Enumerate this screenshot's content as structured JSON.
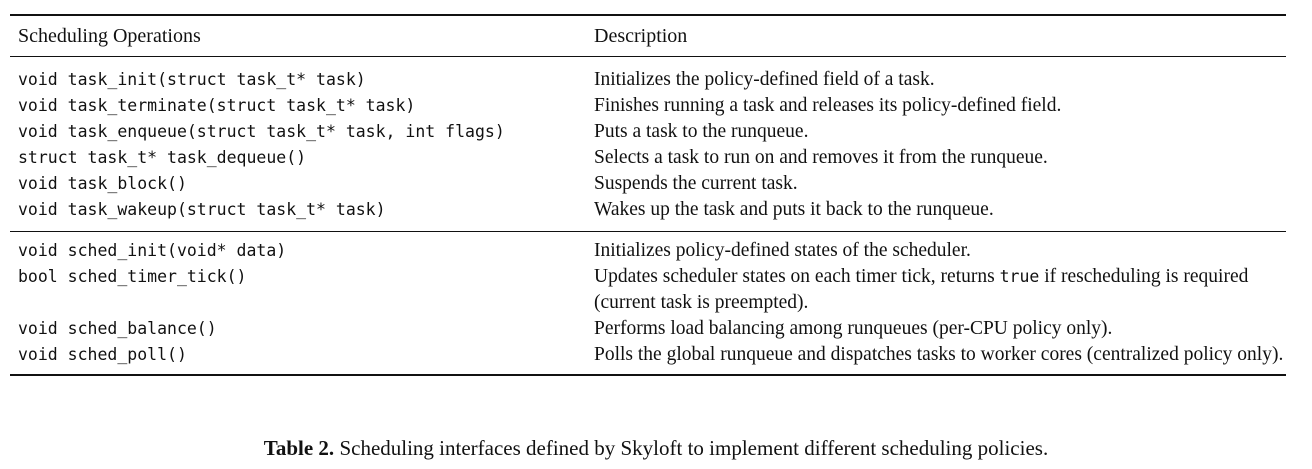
{
  "table": {
    "headers": {
      "operations": "Scheduling Operations",
      "description": "Description"
    },
    "task_rows": [
      {
        "op": "void task_init(struct task_t* task)",
        "desc": "Initializes the policy-defined field of a task."
      },
      {
        "op": "void task_terminate(struct task_t* task)",
        "desc": "Finishes running a task and releases its policy-defined field."
      },
      {
        "op": "void task_enqueue(struct task_t* task, int flags)",
        "desc": "Puts a task to the runqueue."
      },
      {
        "op": "struct task_t* task_dequeue()",
        "desc": "Selects a task to run on and removes it from the runqueue."
      },
      {
        "op": "void task_block()",
        "desc": "Suspends the current task."
      },
      {
        "op": "void task_wakeup(struct task_t* task)",
        "desc": "Wakes up the task and puts it back to the runqueue."
      }
    ],
    "sched_rows": [
      {
        "op": "void sched_init(void* data)",
        "desc": "Initializes policy-defined states of the scheduler."
      },
      {
        "op": "bool sched_timer_tick()",
        "desc_pre": "Updates scheduler states on each timer tick, returns ",
        "desc_code": "true",
        "desc_post": " if rescheduling is required (current task is preempted)."
      },
      {
        "op": "void sched_balance()",
        "desc": "Performs load balancing among runqueues (per-CPU policy only)."
      },
      {
        "op": "void sched_poll()",
        "desc": "Polls the global runqueue and dispatches tasks to worker cores (centralized policy only)."
      }
    ]
  },
  "caption": {
    "label": "Table 2.",
    "text": " Scheduling interfaces defined by Skyloft to implement different scheduling policies."
  }
}
